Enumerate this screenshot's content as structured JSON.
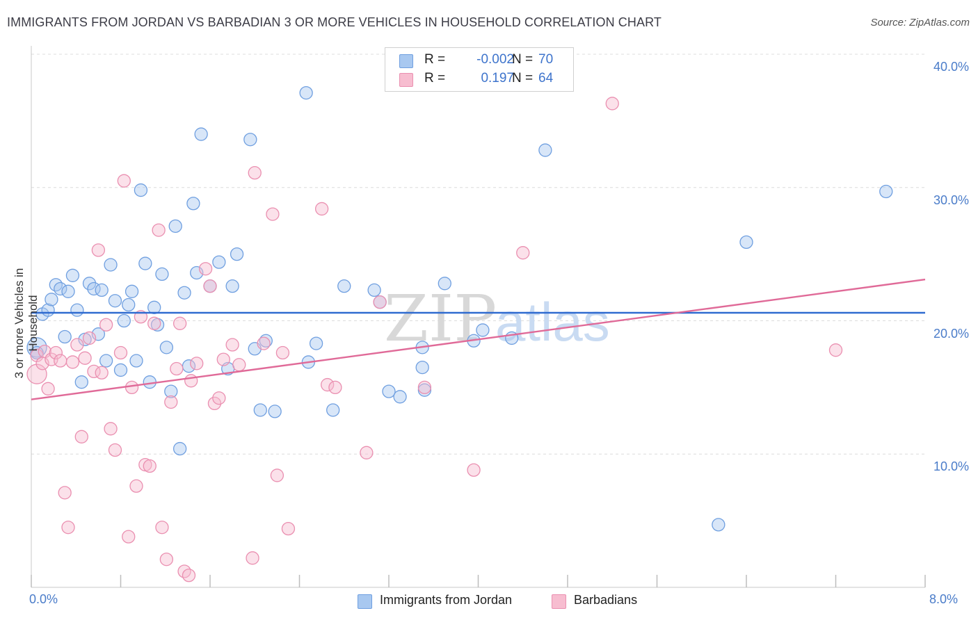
{
  "title": "IMMIGRANTS FROM JORDAN VS BARBADIAN 3 OR MORE VEHICLES IN HOUSEHOLD CORRELATION CHART",
  "source": "Source: ZipAtlas.com",
  "watermark": {
    "part1": "ZIP",
    "part2": "atlas"
  },
  "legend": {
    "rows": [
      {
        "r_label": "R =",
        "r_value": "-0.002",
        "n_label": "N =",
        "n_value": "70",
        "color": "#a8c8f0",
        "border": "#6f9fe0"
      },
      {
        "r_label": "R =",
        "r_value": "0.197",
        "n_label": "N =",
        "n_value": "64",
        "color": "#f7bdd0",
        "border": "#ea8fb0"
      }
    ]
  },
  "bottom_legend": [
    {
      "label": "Immigrants from Jordan",
      "color": "#a8c8f0",
      "border": "#6f9fe0"
    },
    {
      "label": "Barbadians",
      "color": "#f7bdd0",
      "border": "#ea8fb0"
    }
  ],
  "chart_data": {
    "type": "scatter",
    "title": "IMMIGRANTS FROM JORDAN VS BARBADIAN 3 OR MORE VEHICLES IN HOUSEHOLD CORRELATION CHART",
    "xlabel": "",
    "ylabel": "3 or more Vehicles in Household",
    "xlim": [
      0,
      8
    ],
    "ylim": [
      0,
      40
    ],
    "x_tick_labels": [
      "0.0%",
      "8.0%"
    ],
    "y_ticks": [
      10,
      20,
      30,
      40
    ],
    "y_tick_labels": [
      "10.0%",
      "20.0%",
      "30.0%",
      "40.0%"
    ],
    "grid": true,
    "series": [
      {
        "name": "Immigrants from Jordan",
        "color": "#6f9fe0",
        "fill": "#a8c8f0",
        "trend": {
          "x": [
            0,
            8
          ],
          "y": [
            20.6,
            20.6
          ],
          "color": "#2f6bd0"
        },
        "points": [
          [
            0.05,
            18.0
          ],
          [
            0.05,
            17.6
          ],
          [
            0.1,
            20.5
          ],
          [
            0.15,
            20.8
          ],
          [
            0.18,
            21.6
          ],
          [
            0.22,
            22.7
          ],
          [
            0.26,
            22.4
          ],
          [
            0.3,
            18.8
          ],
          [
            0.33,
            22.2
          ],
          [
            0.37,
            23.4
          ],
          [
            0.41,
            20.8
          ],
          [
            0.45,
            15.4
          ],
          [
            0.48,
            18.6
          ],
          [
            0.52,
            22.8
          ],
          [
            0.56,
            22.4
          ],
          [
            0.6,
            19.0
          ],
          [
            0.63,
            22.3
          ],
          [
            0.67,
            17.0
          ],
          [
            0.71,
            24.2
          ],
          [
            0.75,
            21.5
          ],
          [
            0.8,
            16.3
          ],
          [
            0.83,
            20.0
          ],
          [
            0.87,
            21.2
          ],
          [
            0.9,
            22.2
          ],
          [
            0.94,
            17.0
          ],
          [
            0.98,
            29.8
          ],
          [
            1.02,
            24.3
          ],
          [
            1.06,
            15.4
          ],
          [
            1.1,
            21.0
          ],
          [
            1.13,
            19.7
          ],
          [
            1.17,
            23.5
          ],
          [
            1.21,
            18.0
          ],
          [
            1.25,
            14.7
          ],
          [
            1.29,
            27.1
          ],
          [
            1.33,
            10.4
          ],
          [
            1.37,
            22.1
          ],
          [
            1.41,
            16.6
          ],
          [
            1.45,
            28.8
          ],
          [
            1.48,
            23.6
          ],
          [
            1.52,
            34.0
          ],
          [
            1.6,
            22.6
          ],
          [
            1.68,
            24.4
          ],
          [
            1.76,
            16.4
          ],
          [
            1.8,
            22.6
          ],
          [
            1.84,
            25.0
          ],
          [
            1.96,
            33.6
          ],
          [
            2.0,
            17.9
          ],
          [
            2.05,
            13.3
          ],
          [
            2.1,
            18.5
          ],
          [
            2.18,
            13.2
          ],
          [
            2.46,
            37.1
          ],
          [
            2.48,
            16.9
          ],
          [
            2.55,
            18.3
          ],
          [
            2.7,
            13.3
          ],
          [
            2.8,
            22.6
          ],
          [
            3.07,
            22.3
          ],
          [
            3.12,
            21.4
          ],
          [
            3.2,
            14.7
          ],
          [
            3.3,
            14.3
          ],
          [
            3.5,
            18.0
          ],
          [
            3.5,
            16.5
          ],
          [
            3.52,
            14.8
          ],
          [
            3.7,
            22.8
          ],
          [
            3.96,
            18.5
          ],
          [
            4.04,
            19.3
          ],
          [
            4.3,
            18.7
          ],
          [
            4.6,
            32.8
          ],
          [
            6.4,
            25.9
          ],
          [
            6.15,
            4.7
          ],
          [
            7.65,
            29.7
          ]
        ]
      },
      {
        "name": "Barbadians",
        "color": "#ea8fb0",
        "fill": "#f7bdd0",
        "trend": {
          "x": [
            0,
            8
          ],
          "y": [
            14.1,
            23.1
          ],
          "color": "#e06a98"
        },
        "points": [
          [
            0.05,
            16.0
          ],
          [
            0.05,
            17.4
          ],
          [
            0.1,
            16.8
          ],
          [
            0.12,
            17.7
          ],
          [
            0.15,
            14.9
          ],
          [
            0.18,
            17.1
          ],
          [
            0.22,
            17.6
          ],
          [
            0.26,
            17.0
          ],
          [
            0.3,
            7.1
          ],
          [
            0.33,
            4.5
          ],
          [
            0.37,
            16.9
          ],
          [
            0.41,
            18.2
          ],
          [
            0.45,
            11.3
          ],
          [
            0.48,
            17.2
          ],
          [
            0.52,
            18.7
          ],
          [
            0.56,
            16.2
          ],
          [
            0.6,
            25.3
          ],
          [
            0.63,
            16.1
          ],
          [
            0.67,
            19.7
          ],
          [
            0.71,
            11.9
          ],
          [
            0.75,
            10.3
          ],
          [
            0.8,
            17.6
          ],
          [
            0.83,
            30.5
          ],
          [
            0.87,
            3.8
          ],
          [
            0.9,
            15.0
          ],
          [
            0.94,
            7.6
          ],
          [
            0.98,
            20.3
          ],
          [
            1.02,
            9.2
          ],
          [
            1.06,
            9.1
          ],
          [
            1.1,
            19.8
          ],
          [
            1.14,
            26.8
          ],
          [
            1.17,
            4.5
          ],
          [
            1.21,
            2.1
          ],
          [
            1.25,
            13.9
          ],
          [
            1.3,
            16.4
          ],
          [
            1.33,
            19.8
          ],
          [
            1.37,
            1.2
          ],
          [
            1.41,
            0.9
          ],
          [
            1.43,
            15.5
          ],
          [
            1.48,
            16.8
          ],
          [
            1.56,
            23.9
          ],
          [
            1.6,
            22.6
          ],
          [
            1.64,
            13.8
          ],
          [
            1.68,
            14.2
          ],
          [
            1.72,
            17.1
          ],
          [
            1.8,
            18.2
          ],
          [
            1.86,
            16.7
          ],
          [
            1.98,
            2.2
          ],
          [
            2.0,
            31.1
          ],
          [
            2.08,
            18.3
          ],
          [
            2.16,
            28.0
          ],
          [
            2.2,
            8.4
          ],
          [
            2.25,
            17.6
          ],
          [
            2.3,
            4.4
          ],
          [
            2.6,
            28.4
          ],
          [
            2.65,
            15.2
          ],
          [
            2.72,
            15.0
          ],
          [
            3.0,
            10.1
          ],
          [
            3.12,
            21.4
          ],
          [
            3.52,
            15.0
          ],
          [
            3.96,
            8.8
          ],
          [
            4.4,
            25.1
          ],
          [
            5.2,
            36.3
          ],
          [
            7.2,
            17.8
          ]
        ]
      }
    ]
  }
}
